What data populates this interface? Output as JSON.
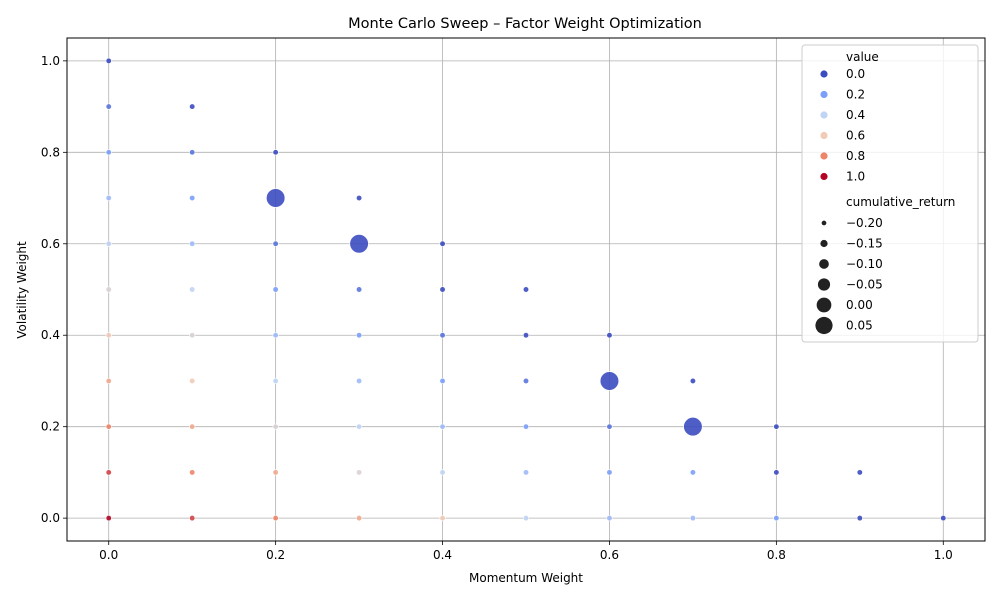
{
  "chart_data": {
    "type": "scatter",
    "title": "Monte Carlo Sweep – Factor Weight Optimization",
    "xlabel": "Momentum Weight",
    "ylabel": "Volatility Weight",
    "xlim": [
      -0.05,
      1.05
    ],
    "ylim": [
      -0.05,
      1.05
    ],
    "x_ticks": [
      "0.0",
      "0.2",
      "0.4",
      "0.6",
      "0.8",
      "1.0"
    ],
    "y_ticks": [
      "0.0",
      "0.2",
      "0.4",
      "0.6",
      "0.8",
      "1.0"
    ],
    "grid": true,
    "legend_position": "top-right",
    "hue": {
      "title": "value",
      "colormap": "coolwarm",
      "entries": [
        {
          "label": "0.0",
          "value": 0.0,
          "color": "#3b4cc0"
        },
        {
          "label": "0.2",
          "value": 0.2,
          "color": "#7b9ff9"
        },
        {
          "label": "0.4",
          "value": 0.4,
          "color": "#c0d4f5"
        },
        {
          "label": "0.6",
          "value": 0.6,
          "color": "#f2cbb7"
        },
        {
          "label": "0.8",
          "value": 0.8,
          "color": "#ee8468"
        },
        {
          "label": "1.0",
          "value": 1.0,
          "color": "#b40426"
        }
      ]
    },
    "size": {
      "title": "cumulative_return",
      "entries": [
        {
          "label": "−0.20",
          "value": -0.2
        },
        {
          "label": "−0.15",
          "value": -0.15
        },
        {
          "label": "−0.10",
          "value": -0.1
        },
        {
          "label": "−0.05",
          "value": -0.05
        },
        {
          "label": "0.00",
          "value": 0.0
        },
        {
          "label": "0.05",
          "value": 0.05
        }
      ]
    },
    "points": [
      {
        "x": 0.0,
        "y": 1.0,
        "value": 0.0,
        "r": -0.19
      },
      {
        "x": 0.0,
        "y": 0.9,
        "value": 0.1,
        "r": -0.19
      },
      {
        "x": 0.0,
        "y": 0.8,
        "value": 0.2,
        "r": -0.19
      },
      {
        "x": 0.0,
        "y": 0.7,
        "value": 0.3,
        "r": -0.19
      },
      {
        "x": 0.0,
        "y": 0.6,
        "value": 0.4,
        "r": -0.19
      },
      {
        "x": 0.0,
        "y": 0.5,
        "value": 0.5,
        "r": -0.19
      },
      {
        "x": 0.0,
        "y": 0.4,
        "value": 0.6,
        "r": -0.19
      },
      {
        "x": 0.0,
        "y": 0.3,
        "value": 0.7,
        "r": -0.19
      },
      {
        "x": 0.0,
        "y": 0.2,
        "value": 0.8,
        "r": -0.19
      },
      {
        "x": 0.0,
        "y": 0.1,
        "value": 0.9,
        "r": -0.19
      },
      {
        "x": 0.0,
        "y": 0.0,
        "value": 1.0,
        "r": -0.19
      },
      {
        "x": 0.1,
        "y": 0.9,
        "value": 0.0,
        "r": -0.19
      },
      {
        "x": 0.1,
        "y": 0.8,
        "value": 0.1,
        "r": -0.19
      },
      {
        "x": 0.1,
        "y": 0.7,
        "value": 0.2,
        "r": -0.19
      },
      {
        "x": 0.1,
        "y": 0.6,
        "value": 0.3,
        "r": -0.19
      },
      {
        "x": 0.1,
        "y": 0.5,
        "value": 0.4,
        "r": -0.19
      },
      {
        "x": 0.1,
        "y": 0.4,
        "value": 0.5,
        "r": -0.19
      },
      {
        "x": 0.1,
        "y": 0.3,
        "value": 0.6,
        "r": -0.19
      },
      {
        "x": 0.1,
        "y": 0.2,
        "value": 0.7,
        "r": -0.19
      },
      {
        "x": 0.1,
        "y": 0.1,
        "value": 0.8,
        "r": -0.19
      },
      {
        "x": 0.1,
        "y": 0.0,
        "value": 0.9,
        "r": -0.19
      },
      {
        "x": 0.2,
        "y": 0.8,
        "value": 0.0,
        "r": -0.19
      },
      {
        "x": 0.2,
        "y": 0.7,
        "value": 0.0,
        "r": 0.06
      },
      {
        "x": 0.2,
        "y": 0.6,
        "value": 0.1,
        "r": -0.19
      },
      {
        "x": 0.2,
        "y": 0.5,
        "value": 0.2,
        "r": -0.19
      },
      {
        "x": 0.2,
        "y": 0.4,
        "value": 0.3,
        "r": -0.19
      },
      {
        "x": 0.2,
        "y": 0.3,
        "value": 0.4,
        "r": -0.19
      },
      {
        "x": 0.2,
        "y": 0.2,
        "value": 0.5,
        "r": -0.19
      },
      {
        "x": 0.2,
        "y": 0.1,
        "value": 0.7,
        "r": -0.19
      },
      {
        "x": 0.2,
        "y": 0.0,
        "value": 0.8,
        "r": -0.19
      },
      {
        "x": 0.3,
        "y": 0.7,
        "value": 0.0,
        "r": -0.19
      },
      {
        "x": 0.3,
        "y": 0.6,
        "value": 0.0,
        "r": 0.06
      },
      {
        "x": 0.3,
        "y": 0.5,
        "value": 0.1,
        "r": -0.19
      },
      {
        "x": 0.3,
        "y": 0.4,
        "value": 0.2,
        "r": -0.19
      },
      {
        "x": 0.3,
        "y": 0.3,
        "value": 0.3,
        "r": -0.19
      },
      {
        "x": 0.3,
        "y": 0.2,
        "value": 0.4,
        "r": -0.19
      },
      {
        "x": 0.3,
        "y": 0.1,
        "value": 0.5,
        "r": -0.19
      },
      {
        "x": 0.3,
        "y": 0.0,
        "value": 0.7,
        "r": -0.19
      },
      {
        "x": 0.4,
        "y": 0.6,
        "value": 0.0,
        "r": -0.19
      },
      {
        "x": 0.4,
        "y": 0.5,
        "value": 0.0,
        "r": -0.19
      },
      {
        "x": 0.4,
        "y": 0.4,
        "value": 0.1,
        "r": -0.19
      },
      {
        "x": 0.4,
        "y": 0.3,
        "value": 0.2,
        "r": -0.19
      },
      {
        "x": 0.4,
        "y": 0.2,
        "value": 0.3,
        "r": -0.19
      },
      {
        "x": 0.4,
        "y": 0.1,
        "value": 0.4,
        "r": -0.19
      },
      {
        "x": 0.4,
        "y": 0.0,
        "value": 0.6,
        "r": -0.19
      },
      {
        "x": 0.5,
        "y": 0.5,
        "value": 0.0,
        "r": -0.19
      },
      {
        "x": 0.5,
        "y": 0.4,
        "value": 0.0,
        "r": -0.19
      },
      {
        "x": 0.5,
        "y": 0.3,
        "value": 0.1,
        "r": -0.19
      },
      {
        "x": 0.5,
        "y": 0.2,
        "value": 0.2,
        "r": -0.19
      },
      {
        "x": 0.5,
        "y": 0.1,
        "value": 0.3,
        "r": -0.19
      },
      {
        "x": 0.5,
        "y": 0.0,
        "value": 0.4,
        "r": -0.19
      },
      {
        "x": 0.6,
        "y": 0.4,
        "value": 0.0,
        "r": -0.19
      },
      {
        "x": 0.6,
        "y": 0.3,
        "value": 0.0,
        "r": 0.06
      },
      {
        "x": 0.6,
        "y": 0.2,
        "value": 0.1,
        "r": -0.19
      },
      {
        "x": 0.6,
        "y": 0.1,
        "value": 0.2,
        "r": -0.19
      },
      {
        "x": 0.6,
        "y": 0.0,
        "value": 0.3,
        "r": -0.19
      },
      {
        "x": 0.7,
        "y": 0.3,
        "value": 0.0,
        "r": -0.19
      },
      {
        "x": 0.7,
        "y": 0.2,
        "value": 0.0,
        "r": 0.06
      },
      {
        "x": 0.7,
        "y": 0.1,
        "value": 0.2,
        "r": -0.19
      },
      {
        "x": 0.7,
        "y": 0.0,
        "value": 0.3,
        "r": -0.19
      },
      {
        "x": 0.8,
        "y": 0.2,
        "value": 0.0,
        "r": -0.19
      },
      {
        "x": 0.8,
        "y": 0.1,
        "value": 0.0,
        "r": -0.19
      },
      {
        "x": 0.8,
        "y": 0.0,
        "value": 0.2,
        "r": -0.19
      },
      {
        "x": 0.9,
        "y": 0.1,
        "value": 0.0,
        "r": -0.19
      },
      {
        "x": 0.9,
        "y": 0.0,
        "value": 0.0,
        "r": -0.19
      },
      {
        "x": 1.0,
        "y": 0.0,
        "value": 0.0,
        "r": -0.19
      }
    ]
  }
}
